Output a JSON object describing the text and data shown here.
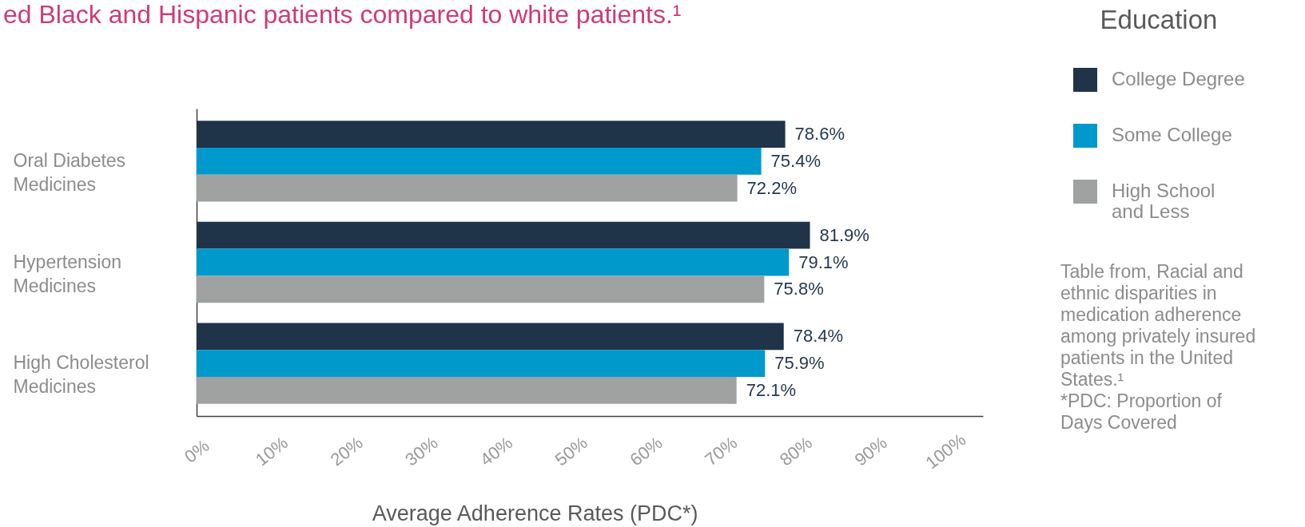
{
  "chart_data": {
    "type": "bar",
    "orientation": "horizontal",
    "title": "ed Black and Hispanic patients compared to white patients.¹",
    "xlabel": "Average Adherence Rates (PDC*)",
    "legend_title": "Education",
    "legend": "top right",
    "categories": [
      "Oral Diabetes Medicines",
      "Hypertension Medicines",
      "High Cholesterol Medicines"
    ],
    "series": [
      {
        "name": "College Degree",
        "color": "#1f3349",
        "values": [
          78.6,
          81.9,
          78.4
        ],
        "value_labels": [
          "78.6%",
          "81.9%",
          "78.4%"
        ]
      },
      {
        "name": "Some College",
        "color": "#0099cc",
        "values": [
          75.4,
          79.1,
          75.9
        ],
        "value_labels": [
          "75.4%",
          "79.1%",
          "75.9%"
        ]
      },
      {
        "name": "High School and Less",
        "color": "#a0a1a1",
        "values": [
          72.2,
          75.8,
          72.1
        ],
        "value_labels": [
          "72.2%",
          "75.8%",
          "72.1%"
        ]
      }
    ],
    "xlim": [
      0,
      105
    ],
    "xticks": [
      {
        "value": 0,
        "label": "0%"
      },
      {
        "value": 10,
        "label": "10%"
      },
      {
        "value": 20,
        "label": "20%"
      },
      {
        "value": 30,
        "label": "30%"
      },
      {
        "value": 40,
        "label": "40%"
      },
      {
        "value": 50,
        "label": "50%"
      },
      {
        "value": 60,
        "label": "60%"
      },
      {
        "value": 70,
        "label": "70%"
      },
      {
        "value": 80,
        "label": "80%"
      },
      {
        "value": 90,
        "label": "90%"
      },
      {
        "value": 100,
        "label": "100%"
      }
    ],
    "annotations": [
      "Table from, Racial and ethnic disparities in medication adherence among privately insured patients in the United States.¹",
      "*PDC: Proportion of Days Covered"
    ]
  }
}
